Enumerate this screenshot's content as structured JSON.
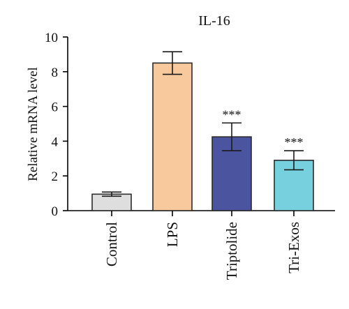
{
  "chart_data": {
    "type": "bar",
    "title": "IL-16",
    "ylabel": "Relative mRNA level",
    "xlabel": "",
    "ylim": [
      0,
      10
    ],
    "yticks": [
      "0",
      "2",
      "4",
      "6",
      "8",
      "10"
    ],
    "categories": [
      "Control",
      "LPS",
      "Triptolide",
      "Tri-Exos"
    ],
    "values": [
      0.95,
      8.5,
      4.25,
      2.9
    ],
    "errors": [
      0.12,
      0.65,
      0.8,
      0.55
    ],
    "significance": [
      "",
      "",
      "***",
      "***"
    ],
    "colors": [
      "#dedede",
      "#f7c99d",
      "#4a549f",
      "#76d0dd"
    ],
    "grid": false,
    "legend": "none"
  }
}
